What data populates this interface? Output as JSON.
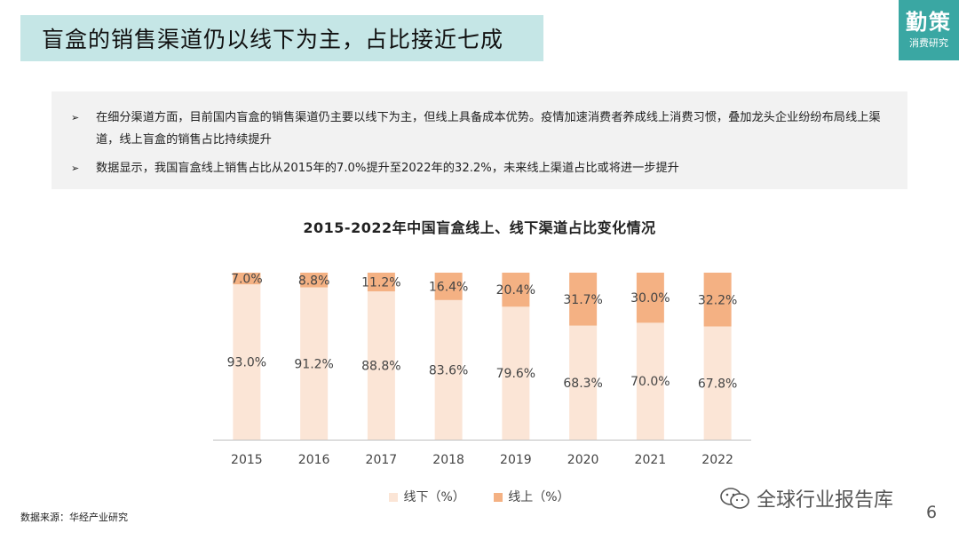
{
  "header": {
    "title": "盲盒的销售渠道仍以线下为主，占比接近七成",
    "logo_main": "勤策",
    "logo_sub": "消费研究"
  },
  "summary": {
    "bullets": [
      "在细分渠道方面，目前国内盲盒的销售渠道仍主要以线下为主，但线上具备成本优势。疫情加速消费者养成线上消费习惯，叠加龙头企业纷纷布局线上渠道，线上盲盒的销售占比持续提升",
      "数据显示，我国盲盒线上销售占比从2015年的7.0%提升至2022年的32.2%，未来线上渠道占比或将进一步提升"
    ],
    "arrow_icon": "arrow-bullet-icon"
  },
  "chart_data": {
    "type": "bar",
    "stacked": true,
    "title": "2015-2022年中国盲盒线上、线下渠道占比变化情况",
    "categories": [
      "2015",
      "2016",
      "2017",
      "2018",
      "2019",
      "2020",
      "2021",
      "2022"
    ],
    "series": [
      {
        "name": "线下（%）",
        "values": [
          93.0,
          91.2,
          88.8,
          83.6,
          79.6,
          68.3,
          70.0,
          67.8
        ],
        "labels": [
          "93.0%",
          "91.2%",
          "88.8%",
          "83.6%",
          "79.6%",
          "68.3%",
          "70.0%",
          "67.8%"
        ],
        "color": "#fbe5d6"
      },
      {
        "name": "线上（%）",
        "values": [
          7.0,
          8.8,
          11.2,
          16.4,
          20.4,
          31.7,
          30.0,
          32.2
        ],
        "labels": [
          "7.0%",
          "8.8%",
          "11.2%",
          "16.4%",
          "20.4%",
          "31.7%",
          "30.0%",
          "32.2%"
        ],
        "color": "#f4b183"
      }
    ],
    "ylim": [
      0,
      100
    ],
    "grid": false,
    "legend": "bottom"
  },
  "footer": {
    "source": "数据来源：华经产业研究",
    "watermark": "全球行业报告库",
    "page_number": "6"
  }
}
